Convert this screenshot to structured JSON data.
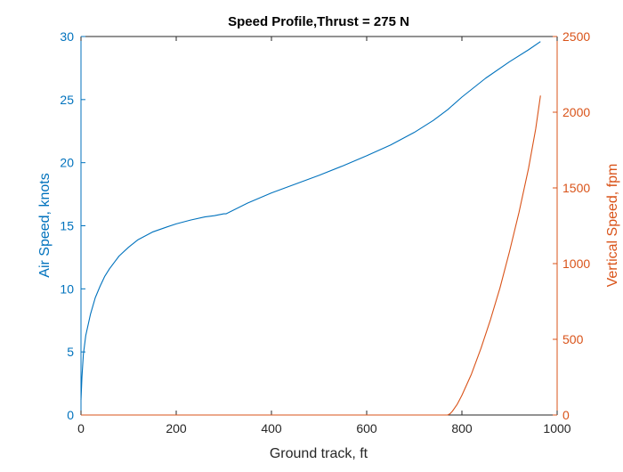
{
  "chart_data": {
    "type": "line",
    "title": "Speed Profile,Thrust = 275 N",
    "xlabel": "Ground track, ft",
    "ylabel_left": "Air Speed, knots",
    "ylabel_right": "Vertical Speed, fpm",
    "xlim": [
      0,
      1000
    ],
    "ylim_left": [
      0,
      30
    ],
    "ylim_right": [
      0,
      2500
    ],
    "x_ticks": [
      "0",
      "200",
      "400",
      "600",
      "800",
      "1000"
    ],
    "y_left_ticks": [
      "0",
      "5",
      "10",
      "15",
      "20",
      "25",
      "30"
    ],
    "y_right_ticks": [
      "0",
      "500",
      "1000",
      "1500",
      "2000",
      "2500"
    ],
    "grid": false,
    "colors": {
      "left_axis": "#0072BD",
      "right_axis": "#D95319",
      "x_axis": "#262626"
    },
    "series": [
      {
        "axis": "left",
        "color": "#0072BD",
        "x": [
          0,
          2,
          5,
          10,
          20,
          30,
          40,
          50,
          60,
          80,
          100,
          120,
          150,
          180,
          200,
          230,
          260,
          280,
          300,
          305,
          350,
          400,
          450,
          500,
          550,
          600,
          650,
          700,
          740,
          770,
          800,
          850,
          900,
          940,
          965
        ],
        "y": [
          1.2,
          3.0,
          4.8,
          6.3,
          8.0,
          9.3,
          10.2,
          11.0,
          11.6,
          12.6,
          13.3,
          13.9,
          14.5,
          14.9,
          15.15,
          15.45,
          15.7,
          15.8,
          15.95,
          15.95,
          16.8,
          17.6,
          18.3,
          19.0,
          19.75,
          20.55,
          21.4,
          22.4,
          23.35,
          24.2,
          25.2,
          26.7,
          28.0,
          28.95,
          29.6
        ]
      },
      {
        "axis": "right",
        "color": "#D95319",
        "x": [
          0,
          100,
          200,
          300,
          400,
          500,
          600,
          700,
          765,
          770,
          775,
          780,
          790,
          800,
          820,
          840,
          860,
          880,
          900,
          920,
          940,
          955,
          965
        ],
        "y": [
          0,
          0,
          0,
          0,
          0,
          0,
          0,
          0,
          0,
          0,
          8,
          25,
          70,
          130,
          270,
          440,
          630,
          840,
          1080,
          1340,
          1630,
          1890,
          2110
        ]
      }
    ]
  }
}
